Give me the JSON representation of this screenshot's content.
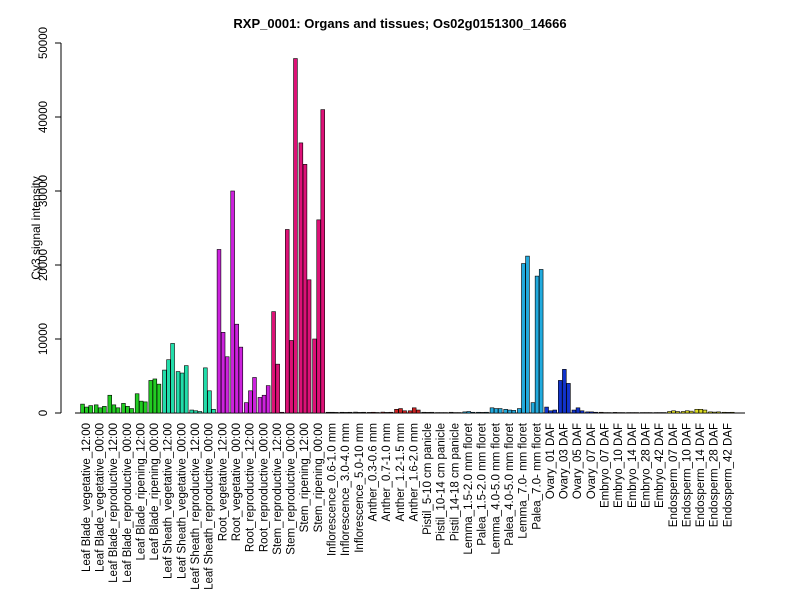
{
  "chart_data": {
    "type": "bar",
    "title": "RXP_0001: Organs and tissues; Os02g0151300_14666",
    "xlabel": "",
    "ylabel": "Cy3 signal intensity",
    "ylim": [
      0,
      50000
    ],
    "yticks": [
      0,
      10000,
      20000,
      30000,
      40000,
      50000
    ],
    "ytick_labels": [
      "0",
      "10000",
      "20000",
      "30000",
      "40000",
      "50000"
    ],
    "grid": false,
    "legend": "none",
    "categories": [
      "Leaf Blade_vegetative_12:00",
      "Leaf Blade_vegetative_00:00",
      "Leaf Blade_reproductive_12:00",
      "Leaf Blade_reproductive_00:00",
      "Leaf Blade_ripening_12:00",
      "Leaf Blade_ripening_00:00",
      "Leaf Sheath_vegetative_12:00",
      "Leaf Sheath_vegetative_00:00",
      "Leaf Sheath_reproductive_12:00",
      "Leaf Sheath_reproductive_00:00",
      "Root_vegetative_12:00",
      "Root_vegetative_00:00",
      "Root_reproductive_12:00",
      "Root_reproductive_00:00",
      "Stem_reproductive_12:00",
      "Stem_reproductive_00:00",
      "Stem_ripening_12:00",
      "Stem_ripening_00:00",
      "Inflorescence_0.6-1.0 mm",
      "Inflorescence_3.0-4.0 mm",
      "Inflorescence_5.0-10 mm",
      "Anther_0.3-0.6 mm",
      "Anther_0.7-1.0 mm",
      "Anther_1.2-1.5 mm",
      "Anther_1.6-2.0 mm",
      "Pistil_5-10 cm panicle",
      "Pistil_10-14 cm panicle",
      "Pistil_14-18 cm panicle",
      "Lemma_1.5-2.0 mm floret",
      "Palea_1.5-2.0 mm floret",
      "Lemma_4.0-5.0 mm floret",
      "Palea_4.0-5.0 mm floret",
      "Lemma_7.0- mm floret",
      "Palea_7.0- mm floret",
      "Ovary_01 DAF",
      "Ovary_03 DAF",
      "Ovary_05 DAF",
      "Ovary_07 DAF",
      "Embryo_07 DAF",
      "Embryo_10 DAF",
      "Embryo_14 DAF",
      "Embryo_28 DAF",
      "Embryo_42 DAF",
      "Endosperm_07 DAF",
      "Endosperm_10 DAF",
      "Endosperm_14 DAF",
      "Endosperm_28 DAF",
      "Endosperm_42 DAF"
    ],
    "colors": [
      "#22cc22",
      "#22cc22",
      "#22cc22",
      "#22cc22",
      "#22cc22",
      "#22cc22",
      "#22ddaa",
      "#22ddaa",
      "#22ddaa",
      "#22ddaa",
      "#cc22dd",
      "#cc22dd",
      "#cc22dd",
      "#cc22dd",
      "#dd1177",
      "#dd1177",
      "#dd1177",
      "#dd1177",
      "#444444",
      "#444444",
      "#444444",
      "#cc2222",
      "#cc2222",
      "#cc2222",
      "#cc2222",
      "#888888",
      "#888888",
      "#888888",
      "#22aadd",
      "#22aadd",
      "#22aadd",
      "#22aadd",
      "#22aadd",
      "#22aadd",
      "#1133cc",
      "#1133cc",
      "#1133cc",
      "#1133cc",
      "#886644",
      "#886644",
      "#886644",
      "#886644",
      "#886644",
      "#dddd22",
      "#dddd22",
      "#dddd22",
      "#dddd22",
      "#dddd22"
    ],
    "values": [
      [
        1200,
        800,
        1000
      ],
      [
        1100,
        700,
        900
      ],
      [
        2400,
        1100,
        700
      ],
      [
        1300,
        900,
        600
      ],
      [
        2600,
        1600,
        1500
      ],
      [
        4400,
        4600,
        3900
      ],
      [
        5800,
        7200,
        9400
      ],
      [
        5600,
        5400,
        6400
      ],
      [
        400,
        300,
        200
      ],
      [
        6100,
        3000,
        500
      ],
      [
        22100,
        10900,
        7600
      ],
      [
        30000,
        12000,
        8900
      ],
      [
        1400,
        3000,
        4800
      ],
      [
        2100,
        2400,
        3700
      ],
      [
        13700,
        6600,
        100
      ],
      [
        24800,
        9800,
        47900
      ],
      [
        36500,
        33600,
        18000
      ],
      [
        10000,
        26100,
        41000
      ],
      [
        100,
        100,
        80
      ],
      [
        100,
        80,
        100
      ],
      [
        120,
        80,
        100
      ],
      [
        80,
        100,
        70
      ],
      [
        120,
        80,
        100
      ],
      [
        500,
        600,
        300
      ],
      [
        300,
        700,
        400
      ],
      [
        100,
        80,
        100
      ],
      [
        60,
        60,
        60
      ],
      [
        100,
        60,
        60
      ],
      [
        150,
        200,
        100
      ],
      [
        100,
        80,
        100
      ],
      [
        700,
        600,
        600
      ],
      [
        500,
        400,
        350
      ],
      [
        600,
        20200,
        21200
      ],
      [
        1400,
        18500,
        19400
      ],
      [
        800,
        300,
        400
      ],
      [
        4400,
        5900,
        4000
      ],
      [
        400,
        700,
        300
      ],
      [
        150,
        150,
        100
      ],
      [
        100,
        60,
        60
      ],
      [
        80,
        60,
        60
      ],
      [
        60,
        60,
        60
      ],
      [
        60,
        60,
        60
      ],
      [
        60,
        60,
        60
      ],
      [
        200,
        300,
        200
      ],
      [
        200,
        300,
        250
      ],
      [
        500,
        500,
        400
      ],
      [
        150,
        120,
        150
      ],
      [
        100,
        80,
        100
      ]
    ]
  }
}
